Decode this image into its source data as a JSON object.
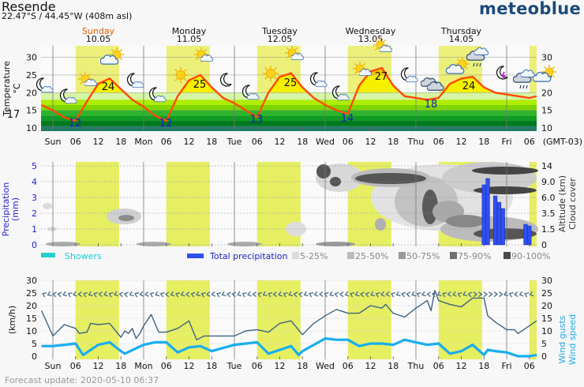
{
  "header": {
    "location": "Resende",
    "coordinates": "22.47°S / 44.45°W (408m asl)",
    "logo": "meteoblue"
  },
  "days": [
    {
      "name": "Sunday",
      "date": "10.05",
      "color": "#e05a00"
    },
    {
      "name": "Monday",
      "date": "11.05",
      "color": "#111111"
    },
    {
      "name": "Tuesday",
      "date": "12.05",
      "color": "#111111"
    },
    {
      "name": "Wednesday",
      "date": "13.05",
      "color": "#111111"
    },
    {
      "name": "Thursday",
      "date": "14.05",
      "color": "#111111"
    }
  ],
  "time_axis": {
    "labels": [
      "Sun",
      "06",
      "12",
      "18",
      "Mon",
      "06",
      "12",
      "18",
      "Tue",
      "06",
      "12",
      "18",
      "Wed",
      "06",
      "12",
      "18",
      "Thu",
      "06",
      "12",
      "18",
      "Fri",
      "06"
    ],
    "timezone": "(GMT-03)"
  },
  "temperature": {
    "ylabel": "Temperature",
    "unit": "°C",
    "yticks": [
      "10",
      "15",
      "20",
      "25",
      "30"
    ],
    "hours": [
      -3,
      0,
      3,
      6,
      9,
      12,
      15,
      18,
      21,
      24,
      27,
      30,
      33,
      36,
      39,
      42,
      45,
      48,
      51,
      54,
      57,
      60,
      63,
      66,
      69,
      72,
      75,
      78,
      81,
      84,
      87,
      90,
      93,
      96,
      99,
      102,
      105,
      108,
      111,
      114,
      117,
      120,
      123,
      126,
      128
    ],
    "values": [
      16.5,
      15,
      13,
      12,
      17.5,
      22.5,
      24,
      21,
      18,
      16,
      13.5,
      12,
      19,
      23.5,
      25,
      21.5,
      18.5,
      17,
      15,
      13,
      20,
      24.5,
      25.5,
      21.5,
      18.5,
      16.5,
      15,
      14,
      22,
      26,
      27,
      22,
      19,
      18.5,
      18,
      18.5,
      22.5,
      24,
      24.5,
      21.5,
      20,
      19.5,
      19,
      18.5,
      19
    ],
    "labels": [
      {
        "text": "17",
        "kind": "start"
      },
      {
        "text": "12",
        "kind": "min"
      },
      {
        "text": "24",
        "kind": "max"
      },
      {
        "text": "12",
        "kind": "min"
      },
      {
        "text": "25",
        "kind": "max"
      },
      {
        "text": "13",
        "kind": "min"
      },
      {
        "text": "25",
        "kind": "max"
      },
      {
        "text": "14",
        "kind": "min"
      },
      {
        "text": "27",
        "kind": "max"
      },
      {
        "text": "18",
        "kind": "min"
      },
      {
        "text": "24",
        "kind": "max"
      }
    ],
    "line_color": "#ff4a00",
    "min_label_color": "#1a1acc",
    "icons": [
      "moon-cloud-icon",
      "moon-cloud-icon",
      "sun-cloud-icon",
      "cloud-sun-icon",
      "moon-cloud-icon",
      "moon-cloud-icon",
      "sun-icon",
      "sun-cloud-icon",
      "moon-icon",
      "moon-cloud-icon",
      "sun-icon",
      "sun-cloud-icon",
      "moon-cloud-icon",
      "moon-cloud-icon",
      "sun-cloud-icon",
      "sun-cloud-icon",
      "moon-cloud-icon",
      "clouds-icon",
      "cloud-sun-icon",
      "rain-cloud-icon",
      "moon-thunder-icon",
      "rain-cloud-icon",
      "cloud-sun-icon"
    ]
  },
  "precipitation": {
    "ylabel": "Precipitation",
    "unit": "(mm)",
    "yticks": [
      "0",
      "1",
      "2",
      "3",
      "4",
      "5"
    ],
    "right_label_1": "Altitude (km)",
    "right_label_2": "Cloud cover",
    "altitude_ticks": [
      "0",
      "1.5",
      "3.5",
      "6.0",
      "9.0",
      "14"
    ],
    "bars": [
      {
        "hour": 114,
        "value": 3.8
      },
      {
        "hour": 115,
        "value": 4.2
      },
      {
        "hour": 117,
        "value": 3.1
      },
      {
        "hour": 118,
        "value": 2.7
      },
      {
        "hour": 119,
        "value": 2.3
      },
      {
        "hour": 125,
        "value": 1.3
      },
      {
        "hour": 126,
        "value": 1.2
      }
    ],
    "bar_color": "#2f4ff0",
    "legend": {
      "showers": "Showers",
      "showers_color": "#22d0d0",
      "total": "Total precipitation",
      "total_color": "#2f4ff0",
      "cloud_levels": [
        {
          "label": "5-25%",
          "color": "#dcdcdc"
        },
        {
          "label": "25-50%",
          "color": "#bcbcbc"
        },
        {
          "label": "50-75%",
          "color": "#999999"
        },
        {
          "label": "75-90%",
          "color": "#707070"
        },
        {
          "label": "90-100%",
          "color": "#4a4a4a"
        }
      ]
    }
  },
  "wind": {
    "unit": "(km/h)",
    "yticks": [
      "0",
      "5",
      "10",
      "15",
      "20",
      "25",
      "30"
    ],
    "right_label_1": "Wind gusts",
    "right_label_2": "Wind speed",
    "speed_color": "#18aef0",
    "gust_color": "#3f6380",
    "speed_hours": [
      -3,
      0,
      3,
      6,
      8,
      12,
      15,
      18,
      19,
      24,
      27,
      30,
      33,
      36,
      39,
      42,
      48,
      54,
      57,
      60,
      63,
      65,
      66,
      72,
      75,
      78,
      81,
      84,
      87,
      90,
      93,
      96,
      99,
      102,
      105,
      108,
      111,
      114,
      115,
      117,
      120,
      123,
      126,
      128
    ],
    "speed": [
      4,
      4,
      4.5,
      5,
      0.5,
      4.5,
      5.5,
      2,
      1,
      4.5,
      5.5,
      5.5,
      1.5,
      3.5,
      4,
      2,
      4.5,
      5.5,
      1,
      2.5,
      4,
      0.5,
      2,
      7,
      6.5,
      6.5,
      4,
      5,
      5,
      4.5,
      6.5,
      5.5,
      4.5,
      5,
      1,
      2,
      4.5,
      0.5,
      2.5,
      2,
      1.5,
      0,
      0,
      0.5
    ],
    "gust_hours": [
      -3,
      0,
      3,
      6,
      7,
      9,
      10,
      12,
      15,
      18,
      19,
      20,
      21,
      22,
      23,
      24,
      26,
      28,
      30,
      33,
      36,
      38,
      40,
      42,
      48,
      51,
      54,
      57,
      60,
      63,
      66,
      69,
      72,
      75,
      78,
      81,
      84,
      87,
      88,
      90,
      93,
      96,
      99,
      100,
      101,
      102,
      105,
      108,
      111,
      114,
      115,
      117,
      120,
      122,
      123,
      126,
      128
    ],
    "gusts": [
      18,
      8,
      12.5,
      11,
      9,
      9.5,
      13,
      12.5,
      13,
      7.5,
      10,
      9,
      11,
      7,
      9,
      12,
      16.5,
      9.5,
      9.5,
      11,
      14,
      6.5,
      8,
      8,
      8,
      10,
      10.5,
      9.5,
      13,
      14,
      8.5,
      13,
      16,
      18.5,
      17,
      17,
      20,
      19,
      20.5,
      17,
      15.5,
      19,
      22,
      18,
      26,
      22,
      20.5,
      19.5,
      23,
      23,
      16,
      13.5,
      10.5,
      10.5,
      9,
      12,
      14
    ]
  },
  "footer": {
    "forecast_update": "Forecast update: 2020-05-10 06:37"
  }
}
